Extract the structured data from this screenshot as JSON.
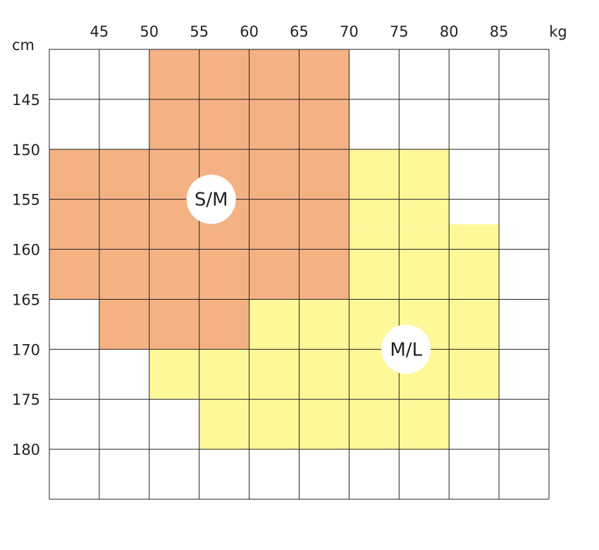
{
  "chart_data": {
    "type": "heatmap",
    "x_unit": "kg",
    "y_unit": "cm",
    "x_ticks": [
      45,
      50,
      55,
      60,
      65,
      70,
      75,
      80,
      85
    ],
    "y_ticks": [
      145,
      150,
      155,
      160,
      165,
      170,
      175,
      180
    ],
    "x_range": [
      40,
      90
    ],
    "y_range": [
      140,
      185
    ],
    "grid": true,
    "zones": [
      {
        "label": "S/M",
        "color": "#f4b183",
        "cells": [
          {
            "x": [
              50,
              70
            ],
            "y": [
              140,
              150
            ]
          },
          {
            "x": [
              40,
              70
            ],
            "y": [
              150,
              165
            ]
          },
          {
            "x": [
              45,
              60
            ],
            "y": [
              165,
              170
            ]
          }
        ],
        "label_at": {
          "x": 56.2,
          "y": 155
        }
      },
      {
        "label": "M/L",
        "color": "#fff899",
        "cells": [
          {
            "x": [
              70,
              80
            ],
            "y": [
              150,
              157.5
            ]
          },
          {
            "x": [
              70,
              85
            ],
            "y": [
              157.5,
              165
            ]
          },
          {
            "x": [
              60,
              85
            ],
            "y": [
              165,
              170
            ]
          },
          {
            "x": [
              50,
              85
            ],
            "y": [
              170,
              175
            ]
          },
          {
            "x": [
              55,
              80
            ],
            "y": [
              175,
              180
            ]
          }
        ],
        "label_at": {
          "x": 75.7,
          "y": 170
        }
      }
    ]
  }
}
